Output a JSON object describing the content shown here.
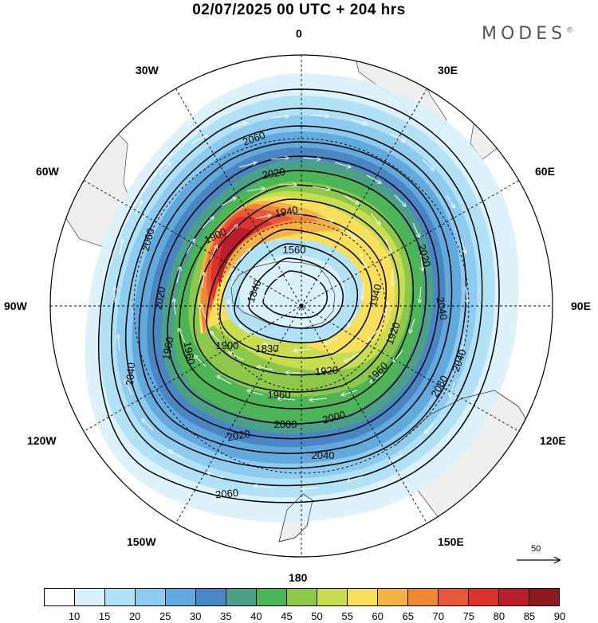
{
  "title": "02/07/2025  00 UTC  + 204 hrs",
  "brand": "MODES",
  "brand_mark": "©",
  "longitude_labels": {
    "lon_0": "0",
    "lon_30e": "30E",
    "lon_60e": "60E",
    "lon_90e": "90E",
    "lon_120e": "120E",
    "lon_150e": "150E",
    "lon_180": "180",
    "lon_150w": "150W",
    "lon_120w": "120W",
    "lon_90w": "90W",
    "lon_60w": "60W",
    "lon_30w": "30W"
  },
  "contour_labels": [
    "2060",
    "2020",
    "1940",
    "1900",
    "1560",
    "1840",
    "2020",
    "2040",
    "2060",
    "2040",
    "1960",
    "1920",
    "1830",
    "1960",
    "1920",
    "1960",
    "2000",
    "2000",
    "2020",
    "2040",
    "2060",
    "2020",
    "2060",
    "2040",
    "1960",
    "1940",
    "1900"
  ],
  "vector_scale": {
    "value": "50"
  },
  "colorbar": {
    "ticks": [
      "10",
      "15",
      "20",
      "25",
      "30",
      "35",
      "40",
      "45",
      "50",
      "55",
      "60",
      "65",
      "70",
      "75",
      "80",
      "85",
      "90"
    ],
    "colors": [
      "#ffffff",
      "#d9f1fb",
      "#b3e2f7",
      "#8ecbee",
      "#62a9dd",
      "#4a86c4",
      "#4c9f88",
      "#4db457",
      "#8dc84b",
      "#cadd52",
      "#f8df5d",
      "#f4b346",
      "#ef8838",
      "#e7583a",
      "#d9322f",
      "#b81f2b",
      "#8d1a20"
    ]
  },
  "colors": {
    "land": "#f0f0f0",
    "grid": "#000000",
    "contour": "#000000"
  }
}
